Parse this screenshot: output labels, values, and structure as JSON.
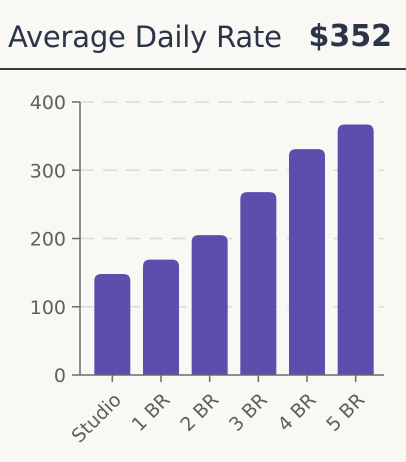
{
  "header": {
    "title": "Average Daily Rate",
    "value": "$352"
  },
  "colors": {
    "bar": "#5b4ead",
    "text": "#2b3447",
    "background": "#faf8f4"
  },
  "chart_data": {
    "type": "bar",
    "categories": [
      "Studio",
      "1 BR",
      "2 BR",
      "3 BR",
      "4 BR",
      "5 BR"
    ],
    "values": [
      148,
      169,
      205,
      268,
      331,
      367
    ],
    "title": "Average Daily Rate",
    "xlabel": "",
    "ylabel": "",
    "ylim": [
      0,
      400
    ],
    "yticks": [
      "0",
      "100",
      "200",
      "300",
      "400"
    ],
    "grid": true,
    "legend": "none"
  }
}
